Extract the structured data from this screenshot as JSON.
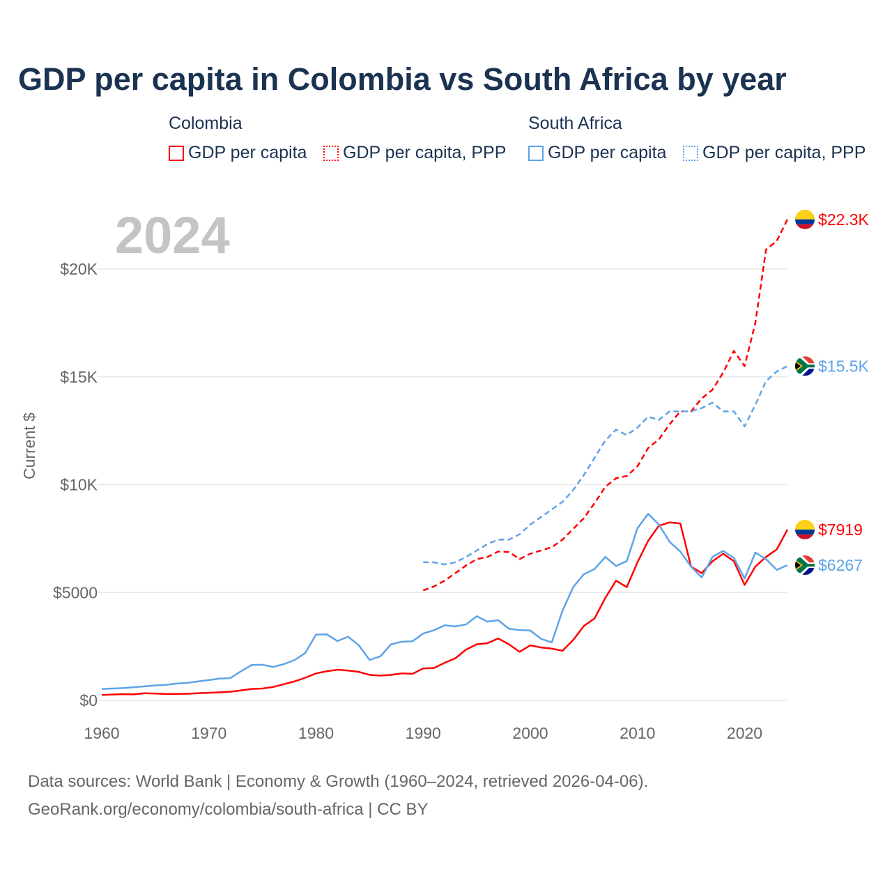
{
  "title": "GDP per capita in Colombia vs South Africa by year",
  "year_label": "2024",
  "legend": {
    "groups": [
      {
        "name": "Colombia",
        "items": [
          "GDP per capita",
          "GDP per capita, PPP"
        ]
      },
      {
        "name": "South Africa",
        "items": [
          "GDP per capita",
          "GDP per capita, PPP"
        ]
      }
    ]
  },
  "colors": {
    "colombia": "#ff0000",
    "south_africa": "#5ea3e8"
  },
  "footer": {
    "line1": "Data sources: World Bank | Economy & Growth (1960–2024, retrieved 2026-04-06).",
    "line2": "GeoRank.org/economy/colombia/south-africa | CC BY"
  },
  "chart_data": {
    "type": "line",
    "title": "GDP per capita in Colombia vs South Africa by year",
    "xlabel": "",
    "ylabel": "Current $",
    "xlim": [
      1960,
      2024
    ],
    "ylim": [
      0,
      22300
    ],
    "x_ticks": [
      1960,
      1970,
      1980,
      1990,
      2000,
      2010,
      2020
    ],
    "y_ticks": [
      {
        "v": 0,
        "label": "$0"
      },
      {
        "v": 5000,
        "label": "$5000"
      },
      {
        "v": 10000,
        "label": "$10K"
      },
      {
        "v": 15000,
        "label": "$15K"
      },
      {
        "v": 20000,
        "label": "$20K"
      }
    ],
    "grid": true,
    "series": [
      {
        "name": "Colombia GDP per capita",
        "country": "colombia",
        "style": "solid",
        "start": 1960,
        "end_label": "$7919",
        "values": [
          250,
          270,
          285,
          280,
          330,
          315,
          295,
          300,
          305,
          330,
          350,
          370,
          400,
          460,
          530,
          550,
          620,
          750,
          880,
          1050,
          1250,
          1350,
          1420,
          1380,
          1320,
          1180,
          1150,
          1180,
          1250,
          1230,
          1480,
          1500,
          1740,
          1950,
          2350,
          2600,
          2650,
          2870,
          2600,
          2250,
          2550,
          2450,
          2400,
          2300,
          2800,
          3450,
          3800,
          4750,
          5550,
          5250,
          6400,
          7400,
          8100,
          8250,
          8200,
          6200,
          5900,
          6450,
          6800,
          6450,
          5350,
          6200,
          6650,
          7000,
          7919
        ]
      },
      {
        "name": "South Africa GDP per capita",
        "country": "south_africa",
        "style": "solid",
        "start": 1960,
        "end_label": "$6267",
        "values": [
          530,
          550,
          570,
          610,
          650,
          690,
          720,
          780,
          810,
          880,
          940,
          1010,
          1030,
          1350,
          1640,
          1650,
          1550,
          1680,
          1870,
          2200,
          3050,
          3060,
          2750,
          2950,
          2550,
          1870,
          2040,
          2600,
          2720,
          2740,
          3100,
          3250,
          3480,
          3430,
          3520,
          3900,
          3650,
          3720,
          3320,
          3260,
          3240,
          2850,
          2690,
          4150,
          5250,
          5850,
          6090,
          6650,
          6230,
          6460,
          7980,
          8650,
          8150,
          7350,
          6900,
          6200,
          5700,
          6650,
          6930,
          6600,
          5650,
          6850,
          6550,
          6050,
          6267
        ]
      },
      {
        "name": "Colombia GDP per capita, PPP",
        "country": "colombia",
        "style": "dashed",
        "start": 1990,
        "end_label": "$22.3K",
        "values": [
          5100,
          5280,
          5550,
          5900,
          6250,
          6550,
          6650,
          6900,
          6880,
          6550,
          6800,
          6950,
          7100,
          7450,
          7950,
          8450,
          9150,
          9900,
          10300,
          10400,
          10850,
          11700,
          12100,
          12800,
          13400,
          13400,
          14000,
          14400,
          15200,
          16200,
          15500,
          17500,
          20900,
          21300,
          22300
        ]
      },
      {
        "name": "South Africa GDP per capita, PPP",
        "country": "south_africa",
        "style": "dashed",
        "start": 1990,
        "end_label": "$15.5K",
        "values": [
          6400,
          6400,
          6300,
          6400,
          6650,
          6950,
          7250,
          7450,
          7450,
          7700,
          8150,
          8500,
          8850,
          9200,
          9750,
          10450,
          11250,
          12050,
          12550,
          12300,
          12650,
          13150,
          13000,
          13400,
          13400,
          13400,
          13550,
          13800,
          13400,
          13400,
          12700,
          13700,
          14800,
          15250,
          15500
        ]
      }
    ]
  }
}
